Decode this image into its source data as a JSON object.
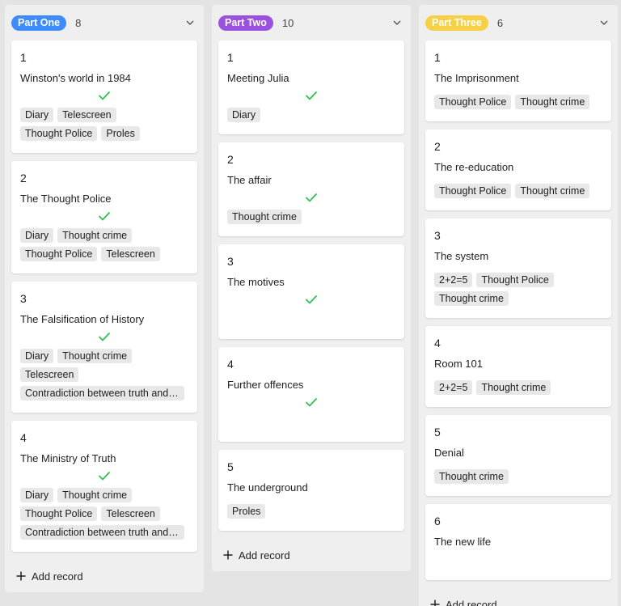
{
  "columns": [
    {
      "label": "Part One",
      "count": "8",
      "pill_bg": "#3d8bfd",
      "pill_fg": "#ffffff",
      "add_label": "Add record",
      "cards": [
        {
          "num": "1",
          "title": "Winston's world in 1984",
          "done": true,
          "tags": [
            "Diary",
            "Telescreen",
            "Thought Police",
            "Proles"
          ]
        },
        {
          "num": "2",
          "title": "The Thought Police",
          "done": true,
          "tags": [
            "Diary",
            "Thought crime",
            "Thought Police",
            "Telescreen"
          ]
        },
        {
          "num": "3",
          "title": "The Falsification of History",
          "done": true,
          "tags": [
            "Diary",
            "Thought crime",
            "Telescreen",
            "Contradiction between truth and l..."
          ]
        },
        {
          "num": "4",
          "title": "The Ministry of Truth",
          "done": true,
          "tags": [
            "Diary",
            "Thought crime",
            "Thought Police",
            "Telescreen",
            "Contradiction between truth and l..."
          ]
        }
      ]
    },
    {
      "label": "Part Two",
      "count": "10",
      "pill_bg": "#9b51e0",
      "pill_fg": "#ffffff",
      "add_label": "Add record",
      "cards": [
        {
          "num": "1",
          "title": "Meeting Julia",
          "done": true,
          "tags": [
            "Diary"
          ]
        },
        {
          "num": "2",
          "title": "The affair",
          "done": true,
          "tags": [
            "Thought crime"
          ]
        },
        {
          "num": "3",
          "title": "The motives",
          "done": true,
          "tags": []
        },
        {
          "num": "4",
          "title": "Further offences",
          "done": true,
          "tags": []
        },
        {
          "num": "5",
          "title": "The underground",
          "done": false,
          "tags": [
            "Proles"
          ]
        }
      ]
    },
    {
      "label": "Part Three",
      "count": "6",
      "pill_bg": "#f7d046",
      "pill_fg": "#ffffff",
      "add_label": "Add record",
      "cards": [
        {
          "num": "1",
          "title": "The Imprisonment",
          "done": false,
          "tags": [
            "Thought Police",
            "Thought crime"
          ]
        },
        {
          "num": "2",
          "title": "The re-education",
          "done": false,
          "tags": [
            "Thought Police",
            "Thought crime"
          ]
        },
        {
          "num": "3",
          "title": "The system",
          "done": false,
          "tags": [
            "2+2=5",
            "Thought Police",
            "Thought crime"
          ]
        },
        {
          "num": "4",
          "title": "Room 101",
          "done": false,
          "tags": [
            "2+2=5",
            "Thought crime"
          ]
        },
        {
          "num": "5",
          "title": "Denial",
          "done": false,
          "tags": [
            "Thought crime"
          ]
        },
        {
          "num": "6",
          "title": "The new life",
          "done": false,
          "tags": []
        }
      ]
    }
  ],
  "icons": {
    "checkmark": "check-icon",
    "collapse": "chevron-down-icon",
    "add": "plus-icon"
  },
  "colors": {
    "check": "#2ec24a"
  }
}
